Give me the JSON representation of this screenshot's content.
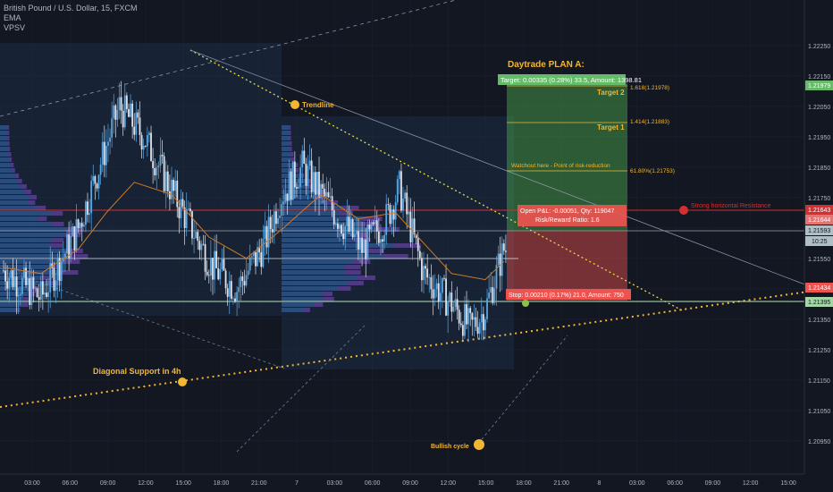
{
  "header": {
    "symbol": "British Pound / U.S. Dollar, 15, FXCM",
    "indicators": [
      "EMA",
      "VPSV"
    ]
  },
  "colors": {
    "background": "#131722",
    "candle_up": "#5aa7e3",
    "candle_down": "#e0e3eb",
    "ema": "#d07a28",
    "resistance": "#d32f2f",
    "support_dotted": "#f2b632",
    "target_zone": "#4caf50",
    "stop_zone": "#ef5350",
    "volume_profile": "#3b6fb6",
    "volume_profile_alt": "#7b4fc1"
  },
  "annotations": {
    "plan_title": "Daytrade PLAN A:",
    "target_label": "Target: 0.00335 (0.28%) 33.5, Amount: 1398.81",
    "target2": "Target 2",
    "target1": "Target 1",
    "fib1618": "1.618(1.21978)",
    "fib1414": "1.414(1.21883)",
    "fib618": "61.80%(1.21753)",
    "watchout": "Watchout here - Point of risk-reduction",
    "trendline": "Trendline",
    "resistance": "Strong horizontal Resistance",
    "open_pl": "Open P&L: -0.00051, Qty: 119047",
    "rr": "Risk/Reward Ratio: 1.6",
    "stop_label": "Stop: 0.00210 (0.17%) 21.0, Amount: 750",
    "diagonal_support": "Diagonal Support in 4h",
    "bullish_cycle": "Bullish cycle"
  },
  "price_tags": {
    "p1": "1.21979",
    "p2": "1.21643",
    "p3": "1.21644",
    "p4": "1.21593",
    "p5": "10:25",
    "p6": "1.21434",
    "p7": "1.21395"
  },
  "chart_data": {
    "type": "candlestick",
    "title": "British Pound / U.S. Dollar, 15, FXCM",
    "ylim": [
      1.2087,
      1.2237
    ],
    "y_ticks": [
      "1.22250",
      "1.22150",
      "1.22050",
      "1.21950",
      "1.21850",
      "1.21750",
      "1.21650",
      "1.21550",
      "1.21450",
      "1.21350",
      "1.21250",
      "1.21150",
      "1.21050",
      "1.20950"
    ],
    "x_ticks": [
      "03:00",
      "06:00",
      "09:00",
      "12:00",
      "15:00",
      "18:00",
      "21:00",
      "7",
      "03:00",
      "06:00",
      "09:00",
      "12:00",
      "15:00",
      "18:00",
      "21:00",
      "8",
      "03:00",
      "06:00",
      "09:00",
      "12:00",
      "15:00"
    ],
    "segments": [
      {
        "x0": 0,
        "y0": 1.2151,
        "x1": 20,
        "y1": 1.2142
      },
      {
        "x0": 20,
        "y0": 1.2142,
        "x1": 40,
        "y1": 1.2165
      },
      {
        "x0": 40,
        "y0": 1.2165,
        "x1": 55,
        "y1": 1.2192
      },
      {
        "x0": 55,
        "y0": 1.2192,
        "x1": 62,
        "y1": 1.2205
      },
      {
        "x0": 62,
        "y0": 1.2205,
        "x1": 75,
        "y1": 1.2195
      },
      {
        "x0": 75,
        "y0": 1.2195,
        "x1": 92,
        "y1": 1.2175
      },
      {
        "x0": 92,
        "y0": 1.2175,
        "x1": 112,
        "y1": 1.2152
      },
      {
        "x0": 112,
        "y0": 1.2152,
        "x1": 125,
        "y1": 1.2145
      },
      {
        "x0": 125,
        "y0": 1.2145,
        "x1": 140,
        "y1": 1.216
      },
      {
        "x0": 140,
        "y0": 1.216,
        "x1": 148,
        "y1": 1.2175
      },
      {
        "x0": 148,
        "y0": 1.2175,
        "x1": 160,
        "y1": 1.2185
      },
      {
        "x0": 160,
        "y0": 1.2185,
        "x1": 175,
        "y1": 1.2172
      },
      {
        "x0": 175,
        "y0": 1.2172,
        "x1": 192,
        "y1": 1.2158
      },
      {
        "x0": 192,
        "y0": 1.2158,
        "x1": 205,
        "y1": 1.2168
      },
      {
        "x0": 205,
        "y0": 1.2168,
        "x1": 212,
        "y1": 1.2178
      },
      {
        "x0": 212,
        "y0": 1.2178,
        "x1": 225,
        "y1": 1.215
      },
      {
        "x0": 225,
        "y0": 1.215,
        "x1": 240,
        "y1": 1.214
      },
      {
        "x0": 240,
        "y0": 1.214,
        "x1": 250,
        "y1": 1.2132
      },
      {
        "x0": 250,
        "y0": 1.2132,
        "x1": 258,
        "y1": 1.2138
      },
      {
        "x0": 258,
        "y0": 1.2138,
        "x1": 268,
        "y1": 1.2158
      }
    ],
    "ema": [
      [
        0,
        1.2152
      ],
      [
        20,
        1.215
      ],
      [
        40,
        1.2158
      ],
      [
        55,
        1.217
      ],
      [
        70,
        1.218
      ],
      [
        90,
        1.2176
      ],
      [
        110,
        1.2162
      ],
      [
        130,
        1.2155
      ],
      [
        150,
        1.2165
      ],
      [
        170,
        1.2176
      ],
      [
        190,
        1.2168
      ],
      [
        210,
        1.217
      ],
      [
        225,
        1.216
      ],
      [
        240,
        1.215
      ],
      [
        258,
        1.2148
      ],
      [
        268,
        1.2154
      ]
    ],
    "levels": {
      "resistance": 1.21643,
      "entry": 1.21593,
      "stop": 1.21395,
      "target1": 1.21883,
      "target2": 1.21978,
      "fib618": 1.21753
    }
  }
}
